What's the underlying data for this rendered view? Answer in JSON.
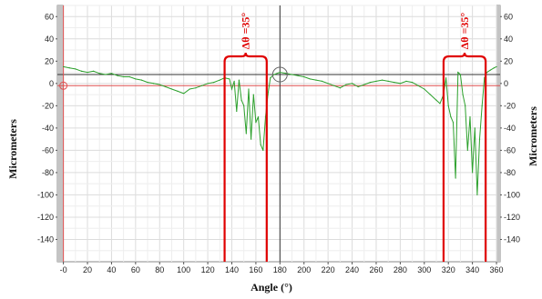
{
  "chart_data": {
    "type": "line",
    "xlabel": "Angle (°)",
    "ylabel_left": "Micrometers",
    "ylabel_right": "Micrometers",
    "xlim": [
      -5,
      363
    ],
    "ylim": [
      -160,
      70
    ],
    "x_ticks": [
      0,
      20,
      40,
      60,
      80,
      100,
      120,
      140,
      160,
      180,
      200,
      220,
      240,
      260,
      280,
      300,
      320,
      340,
      360
    ],
    "x_tick_labels": [
      "-0",
      "20",
      "40",
      "60",
      "80",
      "100",
      "120",
      "140",
      "160",
      "180",
      "200",
      "220",
      "240",
      "260",
      "280",
      "300",
      "320",
      "340",
      "360"
    ],
    "y_ticks": [
      60,
      40,
      20,
      0,
      -20,
      -40,
      -60,
      -80,
      -100,
      -120,
      -140
    ],
    "y_tick_labels": [
      "60",
      "40",
      "20",
      "0",
      "-20",
      "-40",
      "-60",
      "-80",
      "-100",
      "-120",
      "-140"
    ],
    "grid": true,
    "series": [
      {
        "color": "#2ca02c",
        "x": [
          0,
          5,
          10,
          15,
          20,
          25,
          30,
          35,
          40,
          45,
          50,
          55,
          60,
          65,
          70,
          75,
          80,
          85,
          90,
          95,
          100,
          105,
          110,
          115,
          120,
          125,
          130,
          134,
          138,
          140,
          142,
          144,
          146,
          148,
          150,
          152,
          154,
          156,
          158,
          160,
          162,
          164,
          166,
          168,
          170,
          172,
          175,
          180,
          185,
          190,
          195,
          200,
          205,
          210,
          215,
          220,
          225,
          230,
          235,
          240,
          245,
          250,
          255,
          260,
          265,
          270,
          275,
          280,
          285,
          290,
          295,
          300,
          305,
          310,
          313,
          316,
          318,
          320,
          322,
          324,
          326,
          328,
          330,
          332,
          334,
          336,
          338,
          340,
          342,
          344,
          346,
          348,
          350,
          352,
          355,
          358,
          360
        ],
        "y": [
          15,
          14,
          13,
          11,
          10,
          11,
          9,
          8,
          9,
          7,
          6,
          6,
          4,
          3,
          1,
          0,
          -1,
          -3,
          -5,
          -7,
          -9,
          -5,
          -4,
          -2,
          0,
          1,
          3,
          5,
          4,
          -5,
          2,
          -25,
          3,
          -15,
          -20,
          -45,
          -5,
          -50,
          -10,
          -35,
          -30,
          -55,
          -60,
          -30,
          -10,
          5,
          8,
          10,
          9,
          8,
          7,
          6,
          4,
          3,
          2,
          0,
          -2,
          -4,
          -1,
          0,
          -3,
          -1,
          1,
          2,
          3,
          2,
          1,
          0,
          2,
          1,
          -2,
          -5,
          -10,
          -15,
          -18,
          -10,
          5,
          -20,
          -30,
          -35,
          -85,
          10,
          8,
          -10,
          -20,
          -60,
          -30,
          -80,
          -40,
          -100,
          -50,
          -20,
          5,
          10,
          12,
          14,
          15
        ]
      }
    ],
    "reference_lines": [
      {
        "orientation": "horizontal",
        "y": 8,
        "color": "#333333"
      },
      {
        "orientation": "horizontal",
        "y": -2,
        "color": "#e05050"
      },
      {
        "orientation": "vertical",
        "x": 180,
        "color": "#333333"
      },
      {
        "orientation": "vertical",
        "x": 0,
        "color": "#e05050"
      }
    ],
    "brackets": [
      {
        "x_start": 134,
        "x_end": 169,
        "label": "Δθ =35°",
        "color": "#e00000"
      },
      {
        "x_start": 316,
        "x_end": 351,
        "label": "Δθ =35°",
        "color": "#e00000"
      }
    ]
  }
}
